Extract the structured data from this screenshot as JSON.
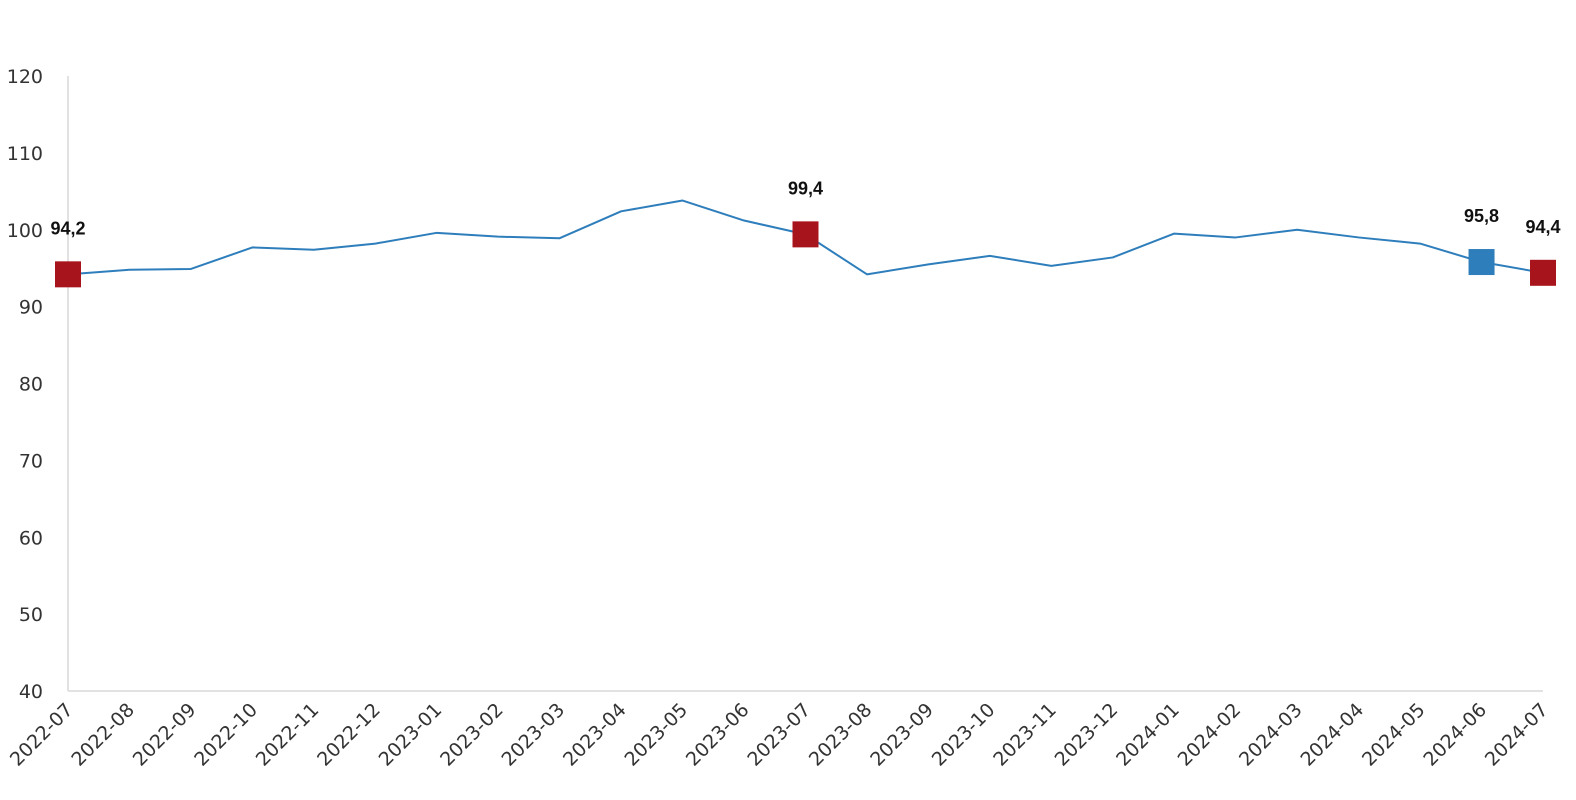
{
  "chart_data": {
    "type": "line",
    "title": "",
    "xlabel": "",
    "ylabel": "",
    "ylim": [
      40,
      120
    ],
    "yticks": [
      40,
      50,
      60,
      70,
      80,
      90,
      100,
      110,
      120
    ],
    "grid": false,
    "categories": [
      "2022-07",
      "2022-08",
      "2022-09",
      "2022-10",
      "2022-11",
      "2022-12",
      "2023-01",
      "2023-02",
      "2023-03",
      "2023-04",
      "2023-05",
      "2023-06",
      "2023-07",
      "2023-08",
      "2023-09",
      "2023-10",
      "2023-11",
      "2023-12",
      "2024-01",
      "2024-02",
      "2024-03",
      "2024-04",
      "2024-05",
      "2024-06",
      "2024-07"
    ],
    "series": [
      {
        "values": [
          94.2,
          94.8,
          94.9,
          97.7,
          97.4,
          98.2,
          99.6,
          99.1,
          98.9,
          102.4,
          103.8,
          101.2,
          99.4,
          94.2,
          95.5,
          96.6,
          95.3,
          96.4,
          99.5,
          99.0,
          100.0,
          99.0,
          98.2,
          95.8,
          94.4
        ],
        "color": "#2e7ebc"
      }
    ],
    "highlights": [
      {
        "index": 0,
        "label": "94,2",
        "color": "#a8141c"
      },
      {
        "index": 12,
        "label": "99,4",
        "color": "#a8141c"
      },
      {
        "index": 23,
        "label": "95,8",
        "color": "#2e7ebc"
      },
      {
        "index": 24,
        "label": "94,4",
        "color": "#a8141c"
      }
    ]
  }
}
